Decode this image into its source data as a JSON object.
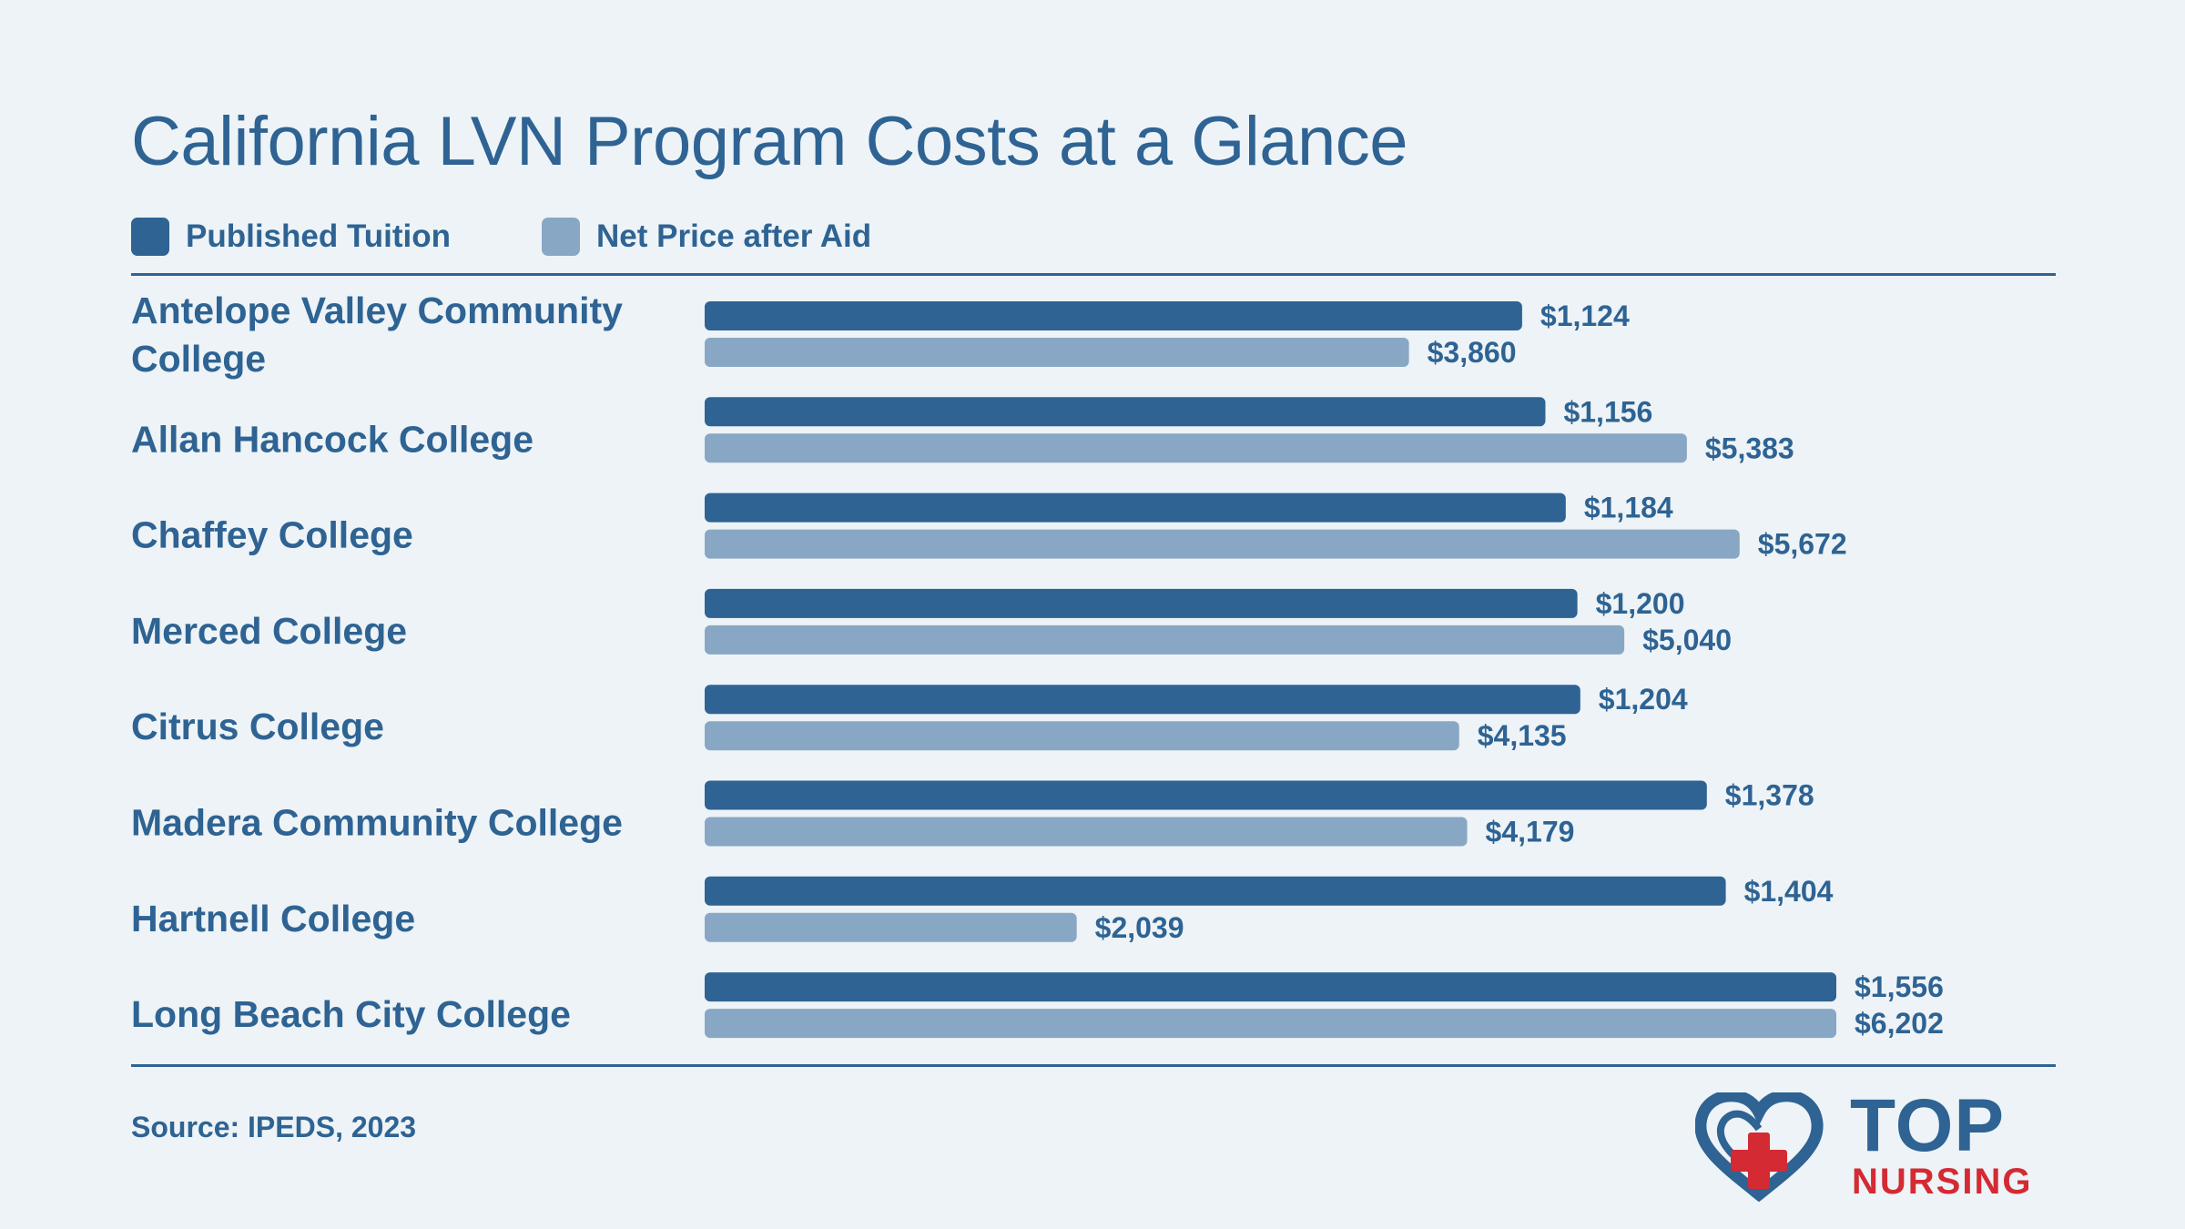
{
  "title": "California LVN Program Costs at a Glance",
  "colors": {
    "tuition": "#2e6393",
    "net_price": "#88a7c4",
    "text": "#2e6393",
    "background": "#edf3f6",
    "brand_red": "#d42a34"
  },
  "source": "Source: IPEDS, 2023",
  "logo": {
    "top": "TOP",
    "bottom": "NURSING",
    "icon": "heart-cross-icon"
  },
  "chart_data": {
    "type": "bar",
    "orientation": "horizontal",
    "title": "California LVN Program Costs at a Glance",
    "legend_placement": "top-left",
    "grid": false,
    "categories": [
      "Antelope Valley Community College",
      "Allan Hancock College",
      "Chaffey College",
      "Merced College",
      "Citrus College",
      "Madera Community College",
      "Hartnell College",
      "Long Beach City College"
    ],
    "series": [
      {
        "name": "Published Tuition",
        "values": [
          1124,
          1156,
          1184,
          1200,
          1204,
          1378,
          1404,
          1556
        ],
        "labels": [
          "$1,124",
          "$1,156",
          "$1,184",
          "$1,200",
          "$1,204",
          "$1,378",
          "$1,404",
          "$1,556"
        ]
      },
      {
        "name": "Net Price after Aid",
        "values": [
          3860,
          5383,
          5672,
          5040,
          4135,
          4179,
          2039,
          6202
        ],
        "labels": [
          "$3,860",
          "$5,383",
          "$5,672",
          "$5,040",
          "$4,135",
          "$4,179",
          "$2,039",
          "$6,202"
        ]
      }
    ]
  }
}
